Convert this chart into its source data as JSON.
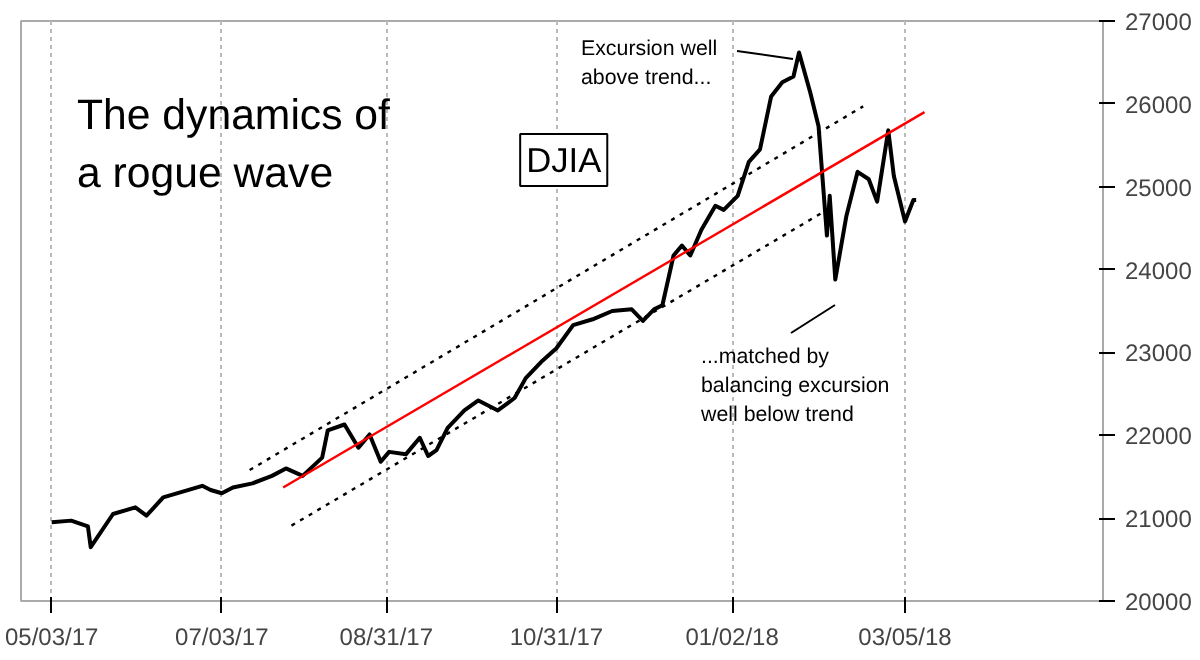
{
  "chart_data": {
    "type": "line",
    "title": "The dynamics of a rogue wave",
    "x": [
      "2017-05-03",
      "2017-05-10",
      "2017-05-16",
      "2017-05-17",
      "2017-05-25",
      "2017-06-02",
      "2017-06-06",
      "2017-06-12",
      "2017-06-19",
      "2017-06-26",
      "2017-06-29",
      "2017-07-03",
      "2017-07-07",
      "2017-07-14",
      "2017-07-21",
      "2017-07-26",
      "2017-08-01",
      "2017-08-08",
      "2017-08-10",
      "2017-08-16",
      "2017-08-21",
      "2017-08-25",
      "2017-08-29",
      "2017-09-01",
      "2017-09-07",
      "2017-09-12",
      "2017-09-15",
      "2017-09-18",
      "2017-09-22",
      "2017-09-28",
      "2017-10-03",
      "2017-10-10",
      "2017-10-16",
      "2017-10-20",
      "2017-10-26",
      "2017-10-31",
      "2017-11-06",
      "2017-11-13",
      "2017-11-20",
      "2017-11-27",
      "2017-11-29",
      "2017-12-01",
      "2017-12-05",
      "2017-12-08",
      "2017-12-12",
      "2017-12-15",
      "2017-12-18",
      "2017-12-22",
      "2017-12-27",
      "2017-12-30",
      "2018-01-04",
      "2018-01-08",
      "2018-01-12",
      "2018-01-16",
      "2018-01-20",
      "2018-01-24",
      "2018-01-26",
      "2018-01-30",
      "2018-02-02",
      "2018-02-05",
      "2018-02-06",
      "2018-02-08",
      "2018-02-12",
      "2018-02-16",
      "2018-02-20",
      "2018-02-23",
      "2018-02-27",
      "2018-03-01",
      "2018-03-05",
      "2018-03-08",
      "2018-03-09"
    ],
    "series": [
      {
        "color": "#000000",
        "line_style": "solid",
        "values": [
          20950,
          20970,
          20900,
          20650,
          21050,
          21130,
          21030,
          21250,
          21320,
          21390,
          21340,
          21300,
          21370,
          21420,
          21510,
          21600,
          21510,
          21730,
          22060,
          22130,
          21850,
          22010,
          21680,
          21800,
          21770,
          21970,
          21750,
          21820,
          22090,
          22300,
          22420,
          22300,
          22450,
          22690,
          22900,
          23050,
          23330,
          23400,
          23500,
          23520,
          23450,
          23380,
          23520,
          23570,
          24170,
          24290,
          24170,
          24480,
          24770,
          24720,
          24890,
          25300,
          25450,
          26090,
          26260,
          26330,
          26620,
          26140,
          25730,
          24410,
          24890,
          23880,
          24650,
          25180,
          25090,
          24820,
          25680,
          25130,
          24580,
          24840,
          24840
        ]
      },
      {
        "color": "#ff0000",
        "line_style": "solid",
        "x": [
          "2017-07-25",
          "2018-03-12"
        ],
        "values": [
          21370,
          25900
        ]
      },
      {
        "color": "#000000",
        "line_style": "dotted",
        "x": [
          "2017-07-13",
          "2018-02-18"
        ],
        "values": [
          21580,
          25970
        ]
      },
      {
        "color": "#000000",
        "line_style": "dotted",
        "x": [
          "2017-07-28",
          "2018-02-05"
        ],
        "values": [
          20910,
          24720
        ]
      }
    ],
    "xlim": [
      "2017-04-22",
      "2018-05-15"
    ],
    "xticks": [
      {
        "value": "2017-05-03",
        "label": "05/03/17"
      },
      {
        "value": "2017-07-03",
        "label": "07/03/17"
      },
      {
        "value": "2017-08-31",
        "label": "08/31/17"
      },
      {
        "value": "2017-10-31",
        "label": "10/31/17"
      },
      {
        "value": "2018-01-02",
        "label": "01/02/18"
      },
      {
        "value": "2018-03-05",
        "label": "03/05/18"
      }
    ],
    "ylim": [
      20000,
      27000
    ],
    "yticks": [
      20000,
      21000,
      22000,
      23000,
      24000,
      25000,
      26000,
      27000
    ],
    "grid": "x",
    "annotations": [
      "Excursion well\nabove trend...",
      "...matched by\nbalancing excursion\nwell below trend",
      "DJIA"
    ]
  }
}
